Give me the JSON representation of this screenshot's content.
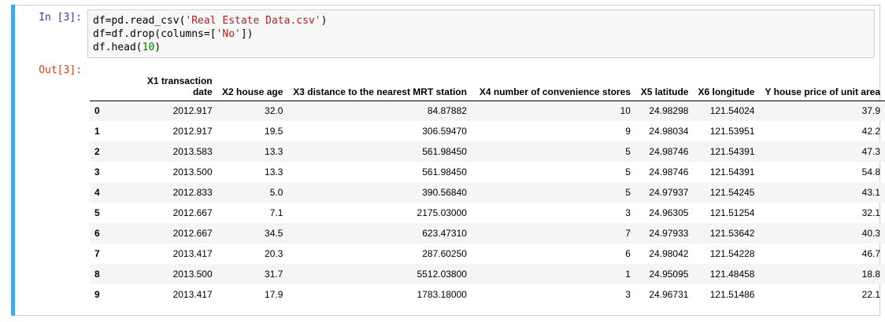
{
  "cell": {
    "in_prompt": "In [3]:",
    "out_prompt": "Out[3]:",
    "code": {
      "line1_pre": "df=pd.read_csv(",
      "line1_str": "'Real Estate Data.csv'",
      "line1_post": ")",
      "line2_pre": "df=df.drop(columns=[",
      "line2_str": "'No'",
      "line2_post": "])",
      "line3_pre": "df.head(",
      "line3_num": "10",
      "line3_post": ")"
    }
  },
  "table": {
    "headers": [
      "",
      "X1 transaction date",
      "X2 house age",
      "X3 distance to the nearest MRT station",
      "X4 number of convenience stores",
      "X5 latitude",
      "X6 longitude",
      "Y house price of unit area"
    ],
    "rows": [
      {
        "index": "0",
        "cells": [
          "2012.917",
          "32.0",
          "84.87882",
          "10",
          "24.98298",
          "121.54024",
          "37.9"
        ]
      },
      {
        "index": "1",
        "cells": [
          "2012.917",
          "19.5",
          "306.59470",
          "9",
          "24.98034",
          "121.53951",
          "42.2"
        ]
      },
      {
        "index": "2",
        "cells": [
          "2013.583",
          "13.3",
          "561.98450",
          "5",
          "24.98746",
          "121.54391",
          "47.3"
        ]
      },
      {
        "index": "3",
        "cells": [
          "2013.500",
          "13.3",
          "561.98450",
          "5",
          "24.98746",
          "121.54391",
          "54.8"
        ]
      },
      {
        "index": "4",
        "cells": [
          "2012.833",
          "5.0",
          "390.56840",
          "5",
          "24.97937",
          "121.54245",
          "43.1"
        ]
      },
      {
        "index": "5",
        "cells": [
          "2012.667",
          "7.1",
          "2175.03000",
          "3",
          "24.96305",
          "121.51254",
          "32.1"
        ]
      },
      {
        "index": "6",
        "cells": [
          "2012.667",
          "34.5",
          "623.47310",
          "7",
          "24.97933",
          "121.53642",
          "40.3"
        ]
      },
      {
        "index": "7",
        "cells": [
          "2013.417",
          "20.3",
          "287.60250",
          "6",
          "24.98042",
          "121.54228",
          "46.7"
        ]
      },
      {
        "index": "8",
        "cells": [
          "2013.500",
          "31.7",
          "5512.03800",
          "1",
          "24.95095",
          "121.48458",
          "18.8"
        ]
      },
      {
        "index": "9",
        "cells": [
          "2013.417",
          "17.9",
          "1783.18000",
          "3",
          "24.96731",
          "121.51486",
          "22.1"
        ]
      }
    ]
  }
}
